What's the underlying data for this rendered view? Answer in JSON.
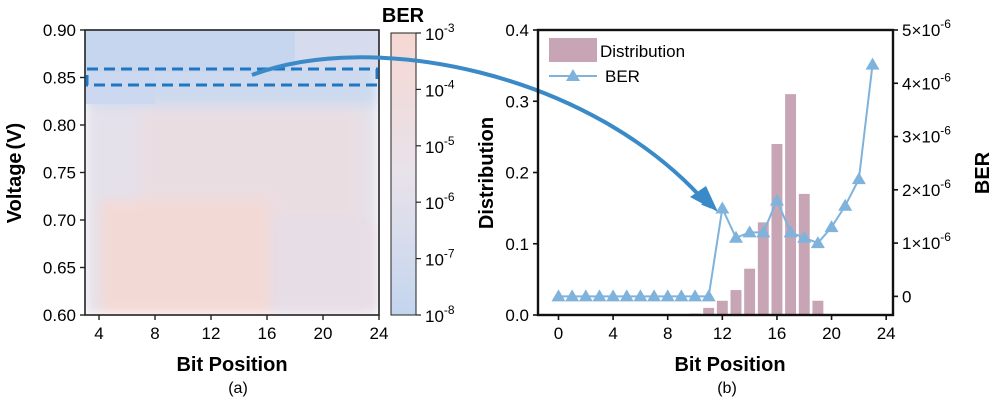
{
  "chart_data": [
    {
      "panel": "a",
      "type": "heatmap",
      "caption": "(a)",
      "xlabel": "Bit Position",
      "ylabel": "Voltage (V)",
      "ylabel_parts": [
        "Voltage",
        "(V)"
      ],
      "xlim": [
        3,
        24
      ],
      "ylim": [
        0.6,
        0.9
      ],
      "x_ticks": [
        4,
        8,
        12,
        16,
        20,
        24
      ],
      "y_ticks": [
        "0.60",
        "0.65",
        "0.70",
        "0.75",
        "0.80",
        "0.85",
        "0.90"
      ],
      "colorbar": {
        "title": "BER",
        "scale": "log",
        "range": [
          1e-08,
          0.001
        ],
        "ticks": [
          {
            "base": "10",
            "exp": "-3",
            "value": 0.001
          },
          {
            "base": "10",
            "exp": "-4",
            "value": 0.0001
          },
          {
            "base": "10",
            "exp": "-5",
            "value": 1e-05
          },
          {
            "base": "10",
            "exp": "-6",
            "value": 1e-06
          },
          {
            "base": "10",
            "exp": "-7",
            "value": 1e-07
          },
          {
            "base": "10",
            "exp": "-8",
            "value": 1e-08
          }
        ],
        "color_low": "#c3d5ee",
        "color_mid": "#e8e2ea",
        "color_high": "#f6d8d2"
      },
      "highlight": {
        "voltage": 0.85,
        "bit_range": [
          3,
          24
        ],
        "color": "#1f77c4"
      }
    },
    {
      "panel": "b",
      "type": "bar+line",
      "caption": "(b)",
      "xlabel": "Bit Position",
      "ylabel_left": "Distribution",
      "ylabel_right": "BER",
      "xlim": [
        -1.5,
        24.5
      ],
      "ylim_left": [
        0,
        0.4
      ],
      "ylim_right": [
        -3.5e-07,
        5e-06
      ],
      "x_ticks": [
        0,
        4,
        8,
        12,
        16,
        20,
        24
      ],
      "y_ticks_left": [
        "0.0",
        "0.1",
        "0.2",
        "0.3",
        "0.4"
      ],
      "y_ticks_right": [
        {
          "mant": "0",
          "exp": "",
          "value": 0
        },
        {
          "mant": "1×10",
          "exp": "-6",
          "value": 1e-06
        },
        {
          "mant": "2×10",
          "exp": "-6",
          "value": 2e-06
        },
        {
          "mant": "3×10",
          "exp": "-6",
          "value": 3e-06
        },
        {
          "mant": "4×10",
          "exp": "-6",
          "value": 4e-06
        },
        {
          "mant": "5×10",
          "exp": "-6",
          "value": 5e-06
        }
      ],
      "legend": {
        "placement": "top-left",
        "entries": [
          "Distribution",
          "BER"
        ]
      },
      "series": [
        {
          "name": "Distribution",
          "kind": "bar",
          "color": "#c7a5b5",
          "x": [
            10,
            11,
            12,
            13,
            14,
            15,
            16,
            17,
            18,
            19
          ],
          "values": [
            0.002,
            0.01,
            0.02,
            0.035,
            0.065,
            0.13,
            0.24,
            0.31,
            0.17,
            0.02
          ]
        },
        {
          "name": "BER",
          "kind": "line",
          "color": "#7fb3dc",
          "marker": "triangle",
          "x": [
            0,
            1,
            2,
            3,
            4,
            5,
            6,
            7,
            8,
            9,
            10,
            11,
            12,
            13,
            14,
            15,
            16,
            17,
            18,
            19,
            20,
            21,
            22,
            23
          ],
          "values": [
            0,
            0,
            0,
            0,
            0,
            0,
            0,
            0,
            0,
            0,
            0,
            0,
            1.65e-06,
            1.1e-06,
            1.2e-06,
            1.2e-06,
            1.8e-06,
            1.2e-06,
            1.1e-06,
            1e-06,
            1.3e-06,
            1.7e-06,
            2.2e-06,
            4.35e-06
          ]
        }
      ],
      "annotation_arrow": {
        "from_panel": "a",
        "to_x": 12,
        "color": "#3a8ac8"
      }
    }
  ]
}
